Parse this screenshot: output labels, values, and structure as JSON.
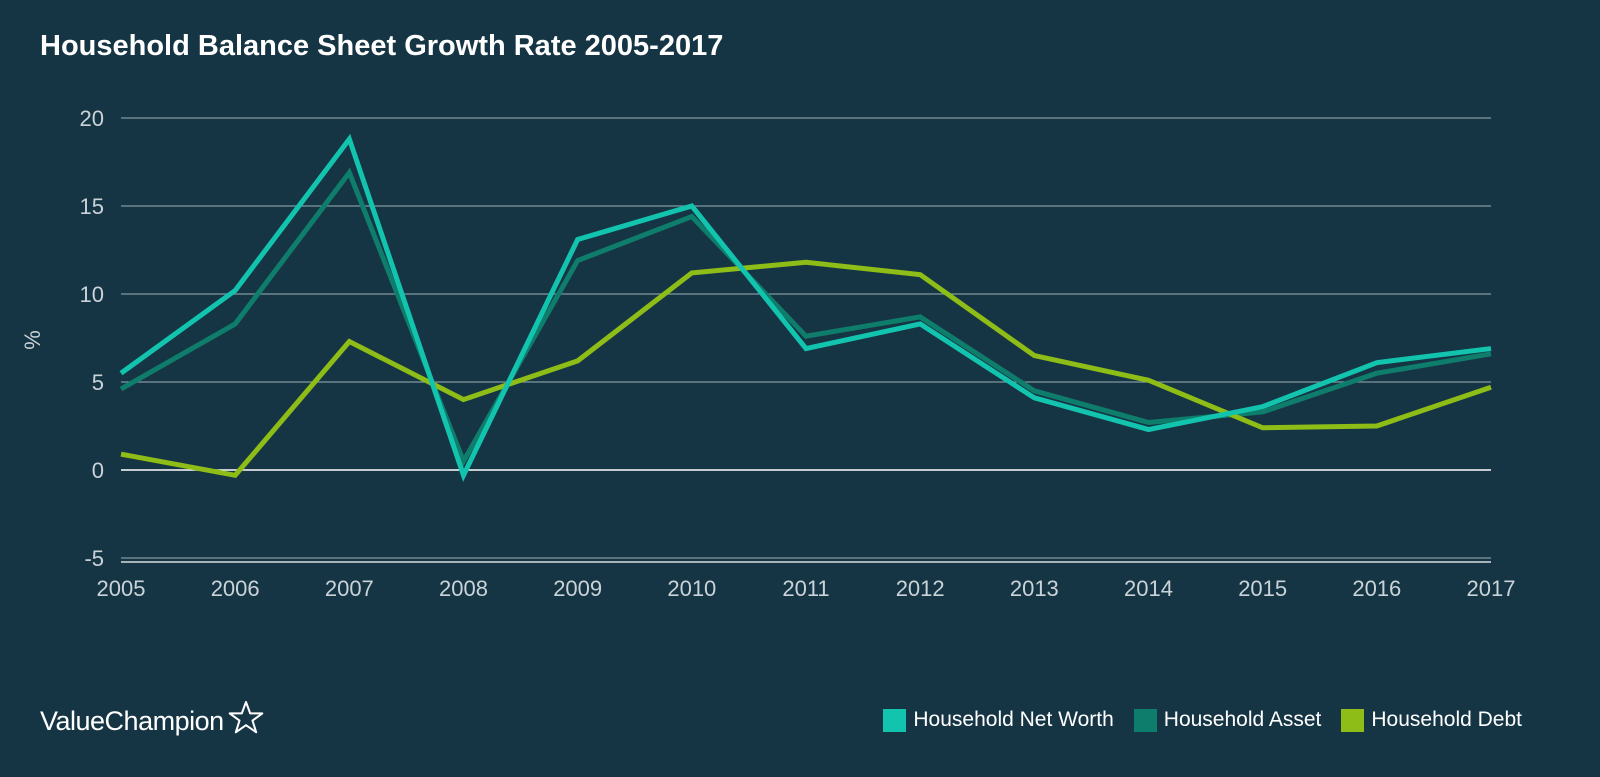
{
  "title": "Household Balance Sheet Growth Rate 2005-2017",
  "brand": {
    "name": "ValueChampion",
    "logo_icon": "star-outline-icon"
  },
  "legend": [
    {
      "label": "Household Net Worth",
      "color": "#12c4ae"
    },
    {
      "label": "Household Asset",
      "color": "#0e7d6c"
    },
    {
      "label": "Household Debt",
      "color": "#8dbd16"
    }
  ],
  "chart_data": {
    "type": "line",
    "title": "Household Balance Sheet Growth Rate 2005-2017",
    "xlabel": "",
    "ylabel": "%",
    "x": [
      "2005",
      "2006",
      "2007",
      "2008",
      "2009",
      "2010",
      "2011",
      "2012",
      "2013",
      "2014",
      "2015",
      "2016",
      "2017"
    ],
    "ylim": [
      -5,
      20
    ],
    "yticks": [
      "20",
      "15",
      "10",
      "5",
      "0",
      "-5"
    ],
    "ytick_values": [
      20,
      15,
      10,
      5,
      0,
      -5
    ],
    "grid": true,
    "legend_position": "bottom-right",
    "series": [
      {
        "name": "Household Asset",
        "color": "#0e7d6c",
        "values": [
          4.6,
          8.3,
          16.9,
          0.5,
          11.9,
          14.4,
          7.6,
          8.7,
          4.5,
          2.7,
          3.3,
          5.5,
          6.6
        ]
      },
      {
        "name": "Household Debt",
        "color": "#8dbd16",
        "values": [
          0.9,
          -0.3,
          7.3,
          4.0,
          6.2,
          11.2,
          11.8,
          11.1,
          6.5,
          5.1,
          2.4,
          2.5,
          4.7
        ]
      },
      {
        "name": "Household Net Worth",
        "color": "#12c4ae",
        "values": [
          5.5,
          10.2,
          18.8,
          -0.3,
          13.1,
          15.0,
          6.9,
          8.3,
          4.1,
          2.3,
          3.6,
          6.1,
          6.9
        ]
      }
    ]
  }
}
